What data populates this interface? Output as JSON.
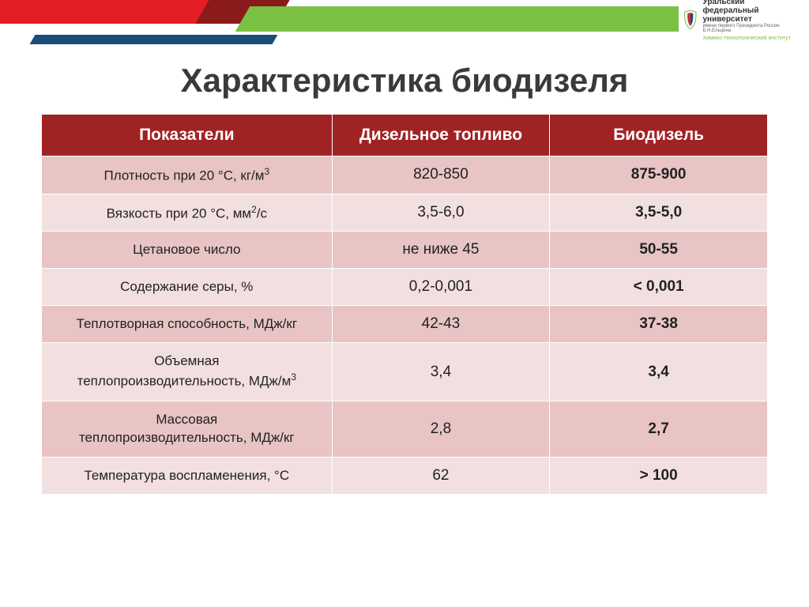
{
  "banner": {
    "logo_line1": "Уральский",
    "logo_line2": "федеральный",
    "logo_line3": "университет",
    "logo_sub1": "имени первого Президента России Б.Н.Ельцина",
    "logo_sub2": "Химико-технологический институт"
  },
  "title": "Характеристика биодизеля",
  "table": {
    "header_bg": "#a02323",
    "odd_bg": "#e8c4c4",
    "even_bg": "#f2e0e0",
    "columns": [
      "Показатели",
      "Дизельное топливо",
      "Биодизель"
    ],
    "col_widths_pct": [
      40,
      30,
      30
    ],
    "header_fontsize": 21,
    "cell_fontsize": 19,
    "rows": [
      {
        "label_html": "Плотность при 20 °С, кг/м<sup>3</sup>",
        "diesel": "820-850",
        "bio": "875-900"
      },
      {
        "label_html": "Вязкость при 20 °С, мм<sup>2</sup>/с",
        "diesel": "3,5-6,0",
        "bio": "3,5-5,0"
      },
      {
        "label_html": "Цетановое число",
        "diesel": "не ниже 45",
        "bio": "50-55"
      },
      {
        "label_html": "Содержание серы, %",
        "diesel": "0,2-0,001",
        "bio": "< 0,001"
      },
      {
        "label_html": "Теплотворная способность, МДж/кг",
        "diesel": "42-43",
        "bio": "37-38"
      },
      {
        "label_html": "Объемная<br>теплопроизводительность, МДж/м<sup>3</sup>",
        "diesel": "3,4",
        "bio": "3,4",
        "multiline": true
      },
      {
        "label_html": "Массовая<br>теплопроизводительность, МДж/кг",
        "diesel": "2,8",
        "bio": "2,7",
        "multiline": true
      },
      {
        "label_html": "Температура воспламенения, °С",
        "diesel": "62",
        "bio": "> 100"
      }
    ]
  },
  "colors": {
    "red": "#e31e24",
    "dark_red": "#8b1a1a",
    "green": "#7ac143",
    "blue": "#1a4d7a",
    "title": "#3a3a3a"
  }
}
